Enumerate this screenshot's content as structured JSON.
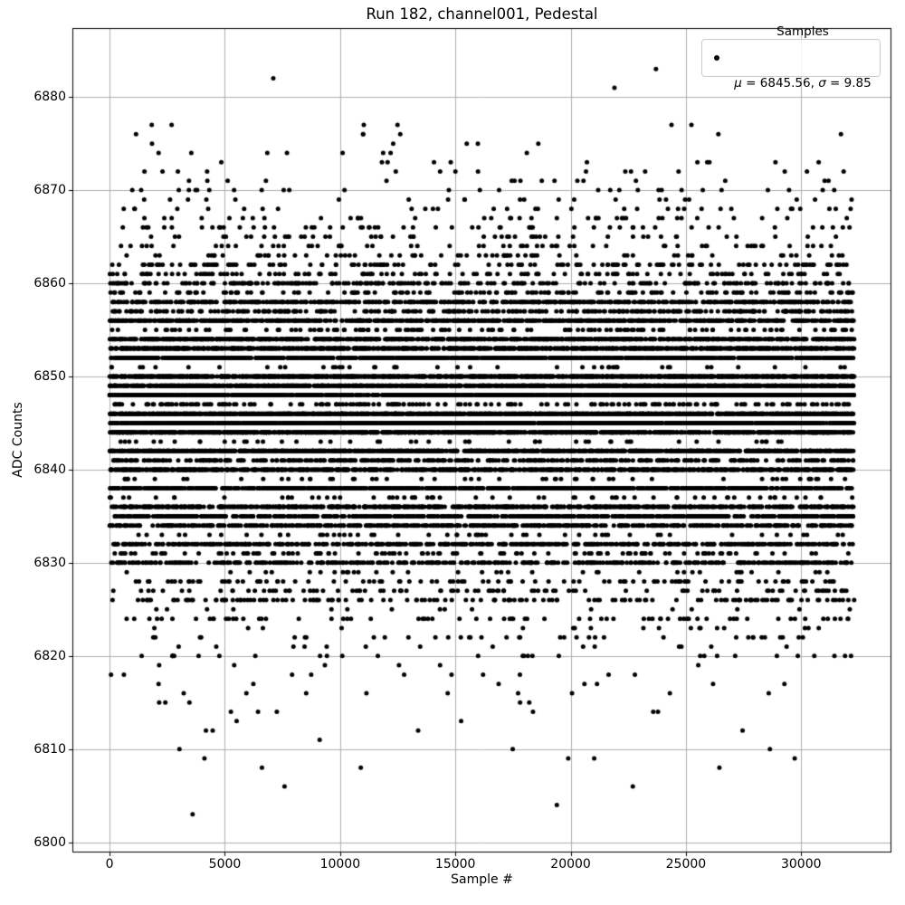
{
  "chart_data": {
    "type": "scatter",
    "title": "Run 182, channel001, Pedestal",
    "xlabel": "Sample #",
    "ylabel": "ADC Counts",
    "legend": {
      "label": "Samples",
      "mu_symbol": "μ",
      "mu_rest": " = 6845.56, ",
      "sigma_symbol": "σ",
      "sigma_rest": " = 9.85",
      "stats_text": "μ = 6845.56, σ = 9.85"
    },
    "stats": {
      "mean": 6845.56,
      "sigma": 9.85
    },
    "marker_color": "#000000",
    "marker_radius_px": 2.5,
    "grid": true,
    "grid_color": "#b0b0b0",
    "axis_color": "#000000",
    "x_ticks": [
      0,
      5000,
      10000,
      15000,
      20000,
      25000,
      30000
    ],
    "y_ticks": [
      6800,
      6810,
      6820,
      6830,
      6840,
      6850,
      6860,
      6870,
      6880
    ],
    "xlim": [
      -1615,
      33915
    ],
    "ylim": [
      6798.9,
      6887.4
    ],
    "n_samples": 32300,
    "adc_min": 6803,
    "adc_max": 6883,
    "counts_by_adc": {
      "6806": 2,
      "6808": 3,
      "6809": 4,
      "6810": 3,
      "6811": 1,
      "6812": 4,
      "6813": 2,
      "6814": 6,
      "6815": 5,
      "6816": 9,
      "6817": 7,
      "6818": 10,
      "6819": 6,
      "6820": 28,
      "6821": 14,
      "6822": 36,
      "6823": 18,
      "6824": 70,
      "6825": 16,
      "6826": 140,
      "6827": 95,
      "6828": 100,
      "6829": 38,
      "6830": 380,
      "6831": 110,
      "6832": 450,
      "6833": 55,
      "6834": 560,
      "6835": 620,
      "6836": 750,
      "6837": 65,
      "6838": 900,
      "6839": 55,
      "6840": 1000,
      "6841": 380,
      "6842": 1100,
      "6843": 50,
      "6844": 1200,
      "6845": 1290,
      "6846": 1300,
      "6847": 190,
      "6848": 1250,
      "6849": 1150,
      "6850": 1150,
      "6851": 45,
      "6852": 1050,
      "6853": 980,
      "6854": 860,
      "6855": 130,
      "6856": 740,
      "6857": 320,
      "6858": 560,
      "6859": 160,
      "6860": 230,
      "6861": 130,
      "6862": 140,
      "6863": 70,
      "6864": 60,
      "6865": 50,
      "6866": 55,
      "6867": 38,
      "6868": 32,
      "6869": 22,
      "6870": 28,
      "6871": 16,
      "6872": 16,
      "6873": 11,
      "6874": 8,
      "6875": 5,
      "6876": 6,
      "6877": 6
    },
    "outlier_points": [
      [
        3600,
        6803
      ],
      [
        19400,
        6804
      ],
      [
        7100,
        6882
      ],
      [
        21900,
        6881
      ],
      [
        23700,
        6883
      ]
    ]
  }
}
